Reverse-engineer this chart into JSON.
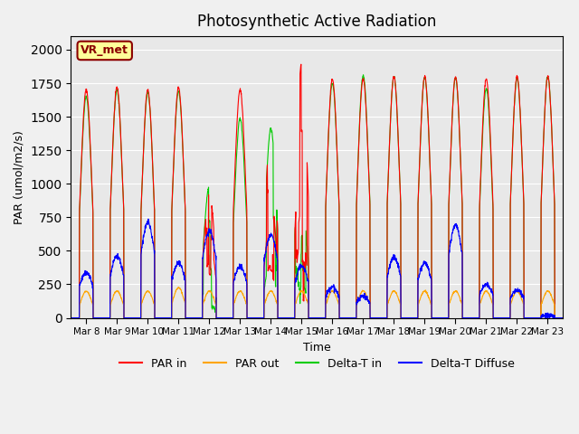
{
  "title": "Photosynthetic Active Radiation",
  "ylabel": "PAR (umol/m2/s)",
  "xlabel": "Time",
  "ylim": [
    0,
    2100
  ],
  "background_color": "#f0f0f0",
  "plot_bg_color": "#e8e8e8",
  "label_box": "VR_met",
  "label_box_color": "#ffff99",
  "label_box_border": "#8b0000",
  "label_box_text_color": "#8b0000",
  "colors": {
    "PAR in": "#ff0000",
    "PAR out": "#ffa500",
    "Delta-T in": "#00cc00",
    "Delta-T Diffuse": "#0000ff"
  },
  "legend_labels": [
    "PAR in",
    "PAR out",
    "Delta-T in",
    "Delta-T Diffuse"
  ],
  "x_tick_labels": [
    "Mar 8",
    "Mar 9",
    "Mar 10",
    "Mar 11",
    "Mar 12",
    "Mar 13",
    "Mar 14",
    "Mar 15",
    "Mar 16",
    "Mar 17",
    "Mar 18",
    "Mar 19",
    "Mar 20",
    "Mar 21",
    "Mar 22",
    "Mar 23"
  ],
  "num_days": 16,
  "points_per_day": 144,
  "day_peaks_par_in": [
    1700,
    1720,
    1700,
    1720,
    920,
    1700,
    1400,
    1900,
    1780,
    1780,
    1800,
    1800,
    1800,
    1780,
    1800,
    1800
  ],
  "day_peaks_par_out": [
    200,
    200,
    200,
    225,
    200,
    200,
    200,
    200,
    200,
    200,
    200,
    200,
    200,
    200,
    200,
    200
  ],
  "day_peaks_delta_t_in": [
    1650,
    1700,
    1680,
    1690,
    980,
    1490,
    1410,
    1300,
    1750,
    1810,
    1800,
    1790,
    1790,
    1710,
    1790,
    1800
  ],
  "day_peaks_delta_t_diffuse": [
    340,
    460,
    710,
    410,
    650,
    380,
    620,
    390,
    230,
    160,
    450,
    410,
    690,
    250,
    210,
    20
  ],
  "cloudy_days": [
    4,
    6,
    7
  ]
}
